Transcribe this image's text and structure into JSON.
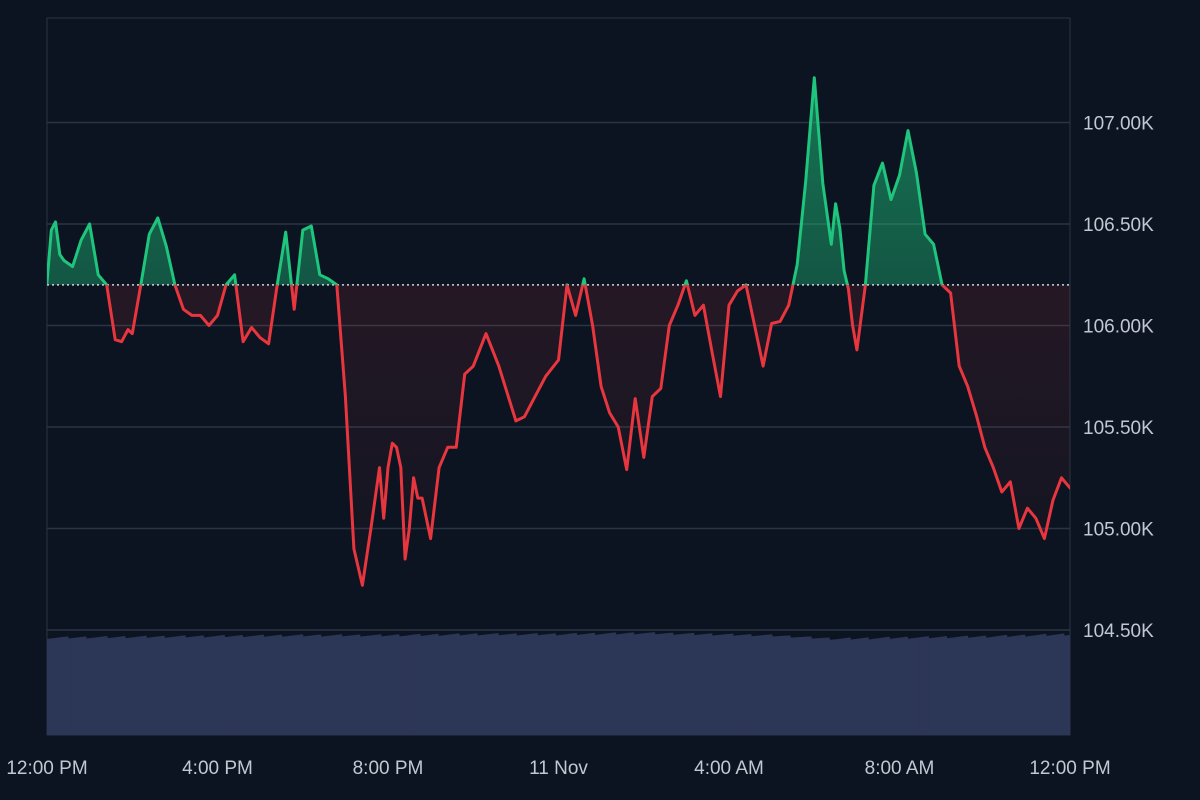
{
  "chart_data": {
    "type": "area",
    "title": "",
    "xlabel": "",
    "ylabel": "",
    "baseline": 106200,
    "ylim": [
      104000,
      107500
    ],
    "grid": true,
    "y_ticks": [
      {
        "value": 104500,
        "label": "104.50K"
      },
      {
        "value": 105000,
        "label": "105.00K"
      },
      {
        "value": 105500,
        "label": "105.50K"
      },
      {
        "value": 106000,
        "label": "106.00K"
      },
      {
        "value": 106500,
        "label": "106.50K"
      },
      {
        "value": 107000,
        "label": "107.00K"
      }
    ],
    "x_ticks": [
      {
        "hour": 0,
        "label": "12:00 PM"
      },
      {
        "hour": 4,
        "label": "4:00 PM"
      },
      {
        "hour": 8,
        "label": "8:00 PM"
      },
      {
        "hour": 12,
        "label": "11 Nov"
      },
      {
        "hour": 16,
        "label": "4:00 AM"
      },
      {
        "hour": 20,
        "label": "8:00 AM"
      },
      {
        "hour": 24,
        "label": "12:00 PM"
      }
    ],
    "x_hours": [
      0,
      0.1,
      0.2,
      0.3,
      0.4,
      0.6,
      0.8,
      1.0,
      1.2,
      1.4,
      1.6,
      1.75,
      1.9,
      2.0,
      2.2,
      2.4,
      2.6,
      2.8,
      3.0,
      3.2,
      3.4,
      3.6,
      3.8,
      4.0,
      4.2,
      4.4,
      4.6,
      4.8,
      5.0,
      5.2,
      5.4,
      5.6,
      5.8,
      6.0,
      6.2,
      6.4,
      6.6,
      6.8,
      7.0,
      7.2,
      7.4,
      7.6,
      7.8,
      7.9,
      8.0,
      8.1,
      8.2,
      8.3,
      8.4,
      8.5,
      8.6,
      8.7,
      8.8,
      9.0,
      9.2,
      9.4,
      9.6,
      9.8,
      10.0,
      10.3,
      10.6,
      11.0,
      11.2,
      11.4,
      11.7,
      12.0,
      12.2,
      12.4,
      12.6,
      12.8,
      13.0,
      13.2,
      13.4,
      13.6,
      13.8,
      14.0,
      14.2,
      14.4,
      14.6,
      14.8,
      15.0,
      15.2,
      15.4,
      15.6,
      15.8,
      16.0,
      16.2,
      16.4,
      16.6,
      16.8,
      17.0,
      17.2,
      17.4,
      17.6,
      17.8,
      18.0,
      18.2,
      18.4,
      18.5,
      18.6,
      18.7,
      18.8,
      18.9,
      19.0,
      19.2,
      19.4,
      19.6,
      19.8,
      20.0,
      20.2,
      20.4,
      20.6,
      20.8,
      21.0,
      21.2,
      21.4,
      21.6,
      21.8,
      22.0,
      22.2,
      22.4,
      22.6,
      22.8,
      23.0,
      23.2,
      23.4,
      23.6,
      23.8,
      24.0
    ],
    "price": [
      106210,
      106470,
      106510,
      106350,
      106320,
      106290,
      106420,
      106500,
      106250,
      106200,
      105930,
      105920,
      105980,
      105960,
      106200,
      106450,
      106530,
      106390,
      106200,
      106080,
      106050,
      106050,
      106000,
      106050,
      106200,
      106250,
      105920,
      105990,
      105940,
      105910,
      106200,
      106460,
      106080,
      106470,
      106490,
      106250,
      106230,
      106200,
      105650,
      104900,
      104720,
      105000,
      105300,
      105050,
      105300,
      105420,
      105400,
      105300,
      104850,
      105000,
      105250,
      105150,
      105150,
      104950,
      105300,
      105400,
      105400,
      105760,
      105800,
      105960,
      105800,
      105530,
      105550,
      105630,
      105750,
      105830,
      106200,
      106050,
      106230,
      106000,
      105700,
      105570,
      105500,
      105290,
      105640,
      105350,
      105650,
      105690,
      106000,
      106100,
      106220,
      106050,
      106100,
      105870,
      105650,
      106100,
      106170,
      106200,
      106000,
      105800,
      106010,
      106020,
      106100,
      106300,
      106710,
      107220,
      106700,
      106400,
      106600,
      106480,
      106270,
      106180,
      106000,
      105880,
      106200,
      106690,
      106800,
      106620,
      106740,
      106960,
      106750,
      106450,
      106400,
      106200,
      106160,
      105800,
      105700,
      105560,
      105400,
      105300,
      105180,
      105230,
      105000,
      105100,
      105050,
      104950,
      105140,
      105250,
      105200
    ],
    "volume_hours": [
      0,
      3,
      6,
      8,
      10,
      12,
      14,
      17,
      18.5,
      20,
      22,
      24
    ],
    "volume_rel": [
      0.85,
      0.86,
      0.87,
      0.87,
      0.88,
      0.88,
      0.89,
      0.87,
      0.84,
      0.85,
      0.86,
      0.88
    ],
    "colors": {
      "background": "#0c1421",
      "up": "#1fc47d",
      "down": "#e8363f",
      "grid": "#2a3444",
      "baseline": "#cfd5de",
      "volume": "#2c3656",
      "text": "#c2c8d2"
    }
  }
}
